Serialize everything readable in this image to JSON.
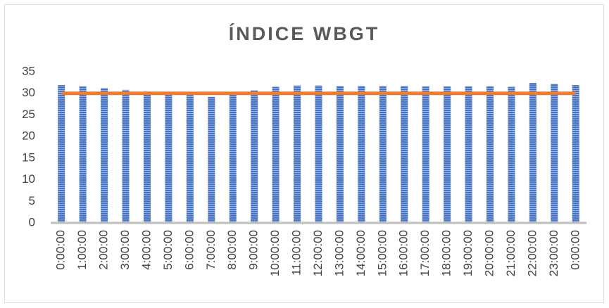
{
  "chart_data": {
    "type": "bar",
    "title": "ÍNDICE WBGT",
    "categories": [
      "0:00:00",
      "1:00:00",
      "2:00:00",
      "3:00:00",
      "4:00:00",
      "5:00:00",
      "6:00:00",
      "7:00:00",
      "8:00:00",
      "9:00:00",
      "10:00:00",
      "11:00:00",
      "12:00:00",
      "13:00:00",
      "14:00:00",
      "15:00:00",
      "16:00:00",
      "17:00:00",
      "18:00:00",
      "19:00:00",
      "20:00:00",
      "21:00:00",
      "22:00:00",
      "23:00:00",
      "0:00:00"
    ],
    "series": [
      {
        "type": "bar",
        "color": "#4472c4",
        "values": [
          31.9,
          31.6,
          31.2,
          30.8,
          30.4,
          30.0,
          29.6,
          29.2,
          29.8,
          30.7,
          31.5,
          31.8,
          31.8,
          31.7,
          31.7,
          31.7,
          31.7,
          31.6,
          31.6,
          31.6,
          31.6,
          31.5,
          32.4,
          32.2,
          31.9
        ]
      },
      {
        "type": "line",
        "color": "#ed7d31",
        "values": [
          30,
          30,
          30,
          30,
          30,
          30,
          30,
          30,
          30,
          30,
          30,
          30,
          30,
          30,
          30,
          30,
          30,
          30,
          30,
          30,
          30,
          30,
          30,
          30,
          30
        ]
      }
    ],
    "ylim": [
      0,
      35
    ],
    "yticks": [
      0,
      5,
      10,
      15,
      20,
      25,
      30,
      35
    ],
    "grid": false
  }
}
